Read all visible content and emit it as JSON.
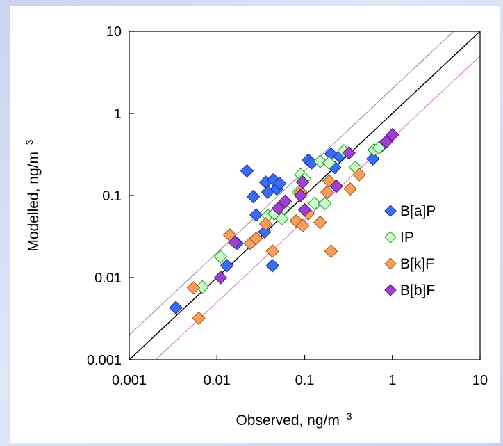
{
  "chart_data": {
    "type": "scatter",
    "xlabel": "Observed, ng/m 3",
    "ylabel": "Modelled, ng/m 3",
    "xlabel_text": "Observed, ng/m",
    "ylabel_text": "Modelled, ng/m",
    "unit_superscript": "3",
    "xscale": "log",
    "yscale": "log",
    "xlim": [
      0.001,
      10
    ],
    "ylim": [
      0.001,
      10
    ],
    "x_ticks": [
      0.001,
      0.01,
      0.1,
      1,
      10
    ],
    "y_ticks": [
      0.001,
      0.01,
      0.1,
      1,
      10
    ],
    "x_tick_labels": [
      "0.001",
      "0.01",
      "0.1",
      "1",
      "10"
    ],
    "y_tick_labels": [
      "0.001",
      "0.01",
      "0.1",
      "1",
      "10"
    ],
    "grid": false,
    "legend_position": "right",
    "reference_lines": [
      {
        "label": "1:1",
        "factor": 1,
        "color": "#000000"
      },
      {
        "label": "factor 2 above",
        "factor": 2,
        "color": "#808080"
      },
      {
        "label": "factor 2 below",
        "factor": 0.5,
        "color": "#cc66cc"
      }
    ],
    "series": [
      {
        "name": "B[a]P",
        "fill": "#3a6cf5",
        "stroke": "#1d35a8",
        "points": [
          [
            0.0034,
            0.0043
          ],
          [
            0.013,
            0.014
          ],
          [
            0.017,
            0.026
          ],
          [
            0.022,
            0.2
          ],
          [
            0.026,
            0.097
          ],
          [
            0.028,
            0.058
          ],
          [
            0.035,
            0.036
          ],
          [
            0.036,
            0.145
          ],
          [
            0.038,
            0.11
          ],
          [
            0.043,
            0.014
          ],
          [
            0.044,
            0.155
          ],
          [
            0.048,
            0.12
          ],
          [
            0.052,
            0.14
          ],
          [
            0.11,
            0.27
          ],
          [
            0.12,
            0.25
          ],
          [
            0.2,
            0.32
          ],
          [
            0.22,
            0.22
          ],
          [
            0.25,
            0.3
          ],
          [
            0.6,
            0.28
          ],
          [
            0.75,
            0.4
          ]
        ]
      },
      {
        "name": "IP",
        "fill": "#ccffcc",
        "stroke": "#2e9e2e",
        "points": [
          [
            0.0068,
            0.0077
          ],
          [
            0.011,
            0.018
          ],
          [
            0.038,
            0.057
          ],
          [
            0.045,
            0.06
          ],
          [
            0.055,
            0.052
          ],
          [
            0.058,
            0.07
          ],
          [
            0.085,
            0.11
          ],
          [
            0.09,
            0.18
          ],
          [
            0.1,
            0.16
          ],
          [
            0.13,
            0.08
          ],
          [
            0.15,
            0.26
          ],
          [
            0.17,
            0.08
          ],
          [
            0.19,
            0.25
          ],
          [
            0.28,
            0.35
          ],
          [
            0.38,
            0.22
          ],
          [
            0.62,
            0.36
          ],
          [
            0.7,
            0.38
          ]
        ]
      },
      {
        "name": "B[k]F",
        "fill": "#f5a060",
        "stroke": "#b05a10",
        "points": [
          [
            0.0054,
            0.0075
          ],
          [
            0.0062,
            0.0032
          ],
          [
            0.014,
            0.033
          ],
          [
            0.024,
            0.026
          ],
          [
            0.028,
            0.03
          ],
          [
            0.036,
            0.045
          ],
          [
            0.043,
            0.021
          ],
          [
            0.08,
            0.049
          ],
          [
            0.09,
            0.11
          ],
          [
            0.095,
            0.043
          ],
          [
            0.11,
            0.06
          ],
          [
            0.15,
            0.047
          ],
          [
            0.18,
            0.11
          ],
          [
            0.19,
            0.15
          ],
          [
            0.2,
            0.021
          ],
          [
            0.33,
            0.12
          ],
          [
            0.42,
            0.18
          ]
        ]
      },
      {
        "name": "B[b]F",
        "fill": "#a040d0",
        "stroke": "#5a1a80",
        "points": [
          [
            0.011,
            0.01
          ],
          [
            0.016,
            0.027
          ],
          [
            0.05,
            0.07
          ],
          [
            0.06,
            0.085
          ],
          [
            0.09,
            0.1
          ],
          [
            0.095,
            0.145
          ],
          [
            0.1,
            0.067
          ],
          [
            0.23,
            0.13
          ],
          [
            0.32,
            0.33
          ],
          [
            0.85,
            0.45
          ],
          [
            1.0,
            0.55
          ]
        ]
      }
    ]
  }
}
